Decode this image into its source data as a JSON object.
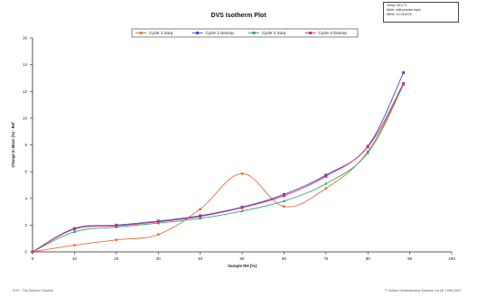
{
  "chart_data": {
    "type": "line",
    "title": "DVS Isotherm Plot",
    "xlabel": "Sample RH [%]",
    "ylabel": "Change In Mass (%) - Ref",
    "xlim": [
      0,
      100
    ],
    "ylim": [
      0,
      16
    ],
    "xticks": [
      0,
      10,
      20,
      30,
      40,
      50,
      60,
      70,
      80,
      90,
      100
    ],
    "yticks": [
      0,
      2,
      4,
      6,
      8,
      10,
      12,
      14,
      16
    ],
    "grid": false,
    "legend_position": "top-center",
    "series": [
      {
        "name": "Cycle 1 Sorp",
        "color": "#e0703a",
        "marker": "circle",
        "x": [
          0,
          10,
          20,
          30,
          40,
          50,
          60,
          70,
          80,
          88.5
        ],
        "y": [
          0,
          0.5,
          0.9,
          1.3,
          3.2,
          5.85,
          3.4,
          4.75,
          7.5,
          12.6
        ]
      },
      {
        "name": "Cycle 1 Desorp",
        "color": "#3b4fc4",
        "marker": "square",
        "x": [
          0,
          10,
          20,
          30,
          40,
          50,
          60,
          70,
          80,
          88.5
        ],
        "y": [
          0,
          1.75,
          2.0,
          2.3,
          2.7,
          3.35,
          4.3,
          5.75,
          7.9,
          13.4
        ]
      },
      {
        "name": "Cycle 2 Sorp",
        "color": "#2fa86a",
        "marker": "triangle",
        "x": [
          0,
          10,
          20,
          30,
          40,
          50,
          60,
          70,
          80,
          88.5
        ],
        "y": [
          0,
          1.5,
          1.85,
          2.15,
          2.5,
          3.05,
          3.8,
          5.1,
          7.4,
          12.5
        ]
      },
      {
        "name": "Cycle 2 Desorp",
        "color": "#d0307a",
        "marker": "square",
        "x": [
          0,
          10,
          20,
          30,
          40,
          50,
          60,
          70,
          80,
          88.5
        ],
        "y": [
          0,
          1.7,
          1.95,
          2.25,
          2.65,
          3.3,
          4.2,
          5.65,
          7.85,
          12.6
        ]
      }
    ],
    "info_box": {
      "temp": "Temp: 25.0 °C",
      "meth": "Meth: milk powder topic",
      "mref": "MRef: 10 014078"
    }
  },
  "footer": {
    "left": "DVS - The Sorption Solution",
    "right": "© Surface Measurement Systems Ltd UK 1996-2003"
  }
}
